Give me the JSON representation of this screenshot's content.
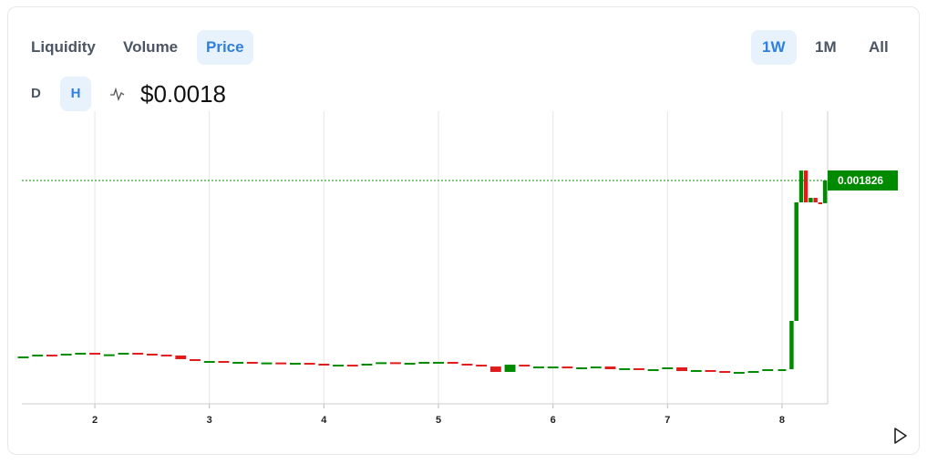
{
  "tabs": [
    "Liquidity",
    "Volume",
    "Price"
  ],
  "ranges": [
    "1W",
    "1M",
    "All"
  ],
  "intervals": [
    "D",
    "H"
  ],
  "price_display": "$0.0018",
  "chart_data": {
    "type": "candlestick",
    "x": [
      1.375,
      1.5,
      1.625,
      1.75,
      1.875,
      2.0,
      2.125,
      2.25,
      2.375,
      2.5,
      2.625,
      2.75,
      2.875,
      3.0,
      3.125,
      3.25,
      3.375,
      3.5,
      3.625,
      3.75,
      3.875,
      4.0,
      4.125,
      4.25,
      4.375,
      4.5,
      4.625,
      4.75,
      4.875,
      5.0,
      5.125,
      5.25,
      5.375,
      5.5,
      5.625,
      5.75,
      5.875,
      6.0,
      6.125,
      6.25,
      6.375,
      6.5,
      6.625,
      6.75,
      6.875,
      7.0,
      7.125,
      7.25,
      7.375,
      7.5,
      7.625,
      7.75,
      7.875,
      8.0,
      8.083,
      8.125,
      8.167,
      8.208,
      8.25,
      8.292,
      8.333,
      8.375
    ],
    "open": [
      0.00038,
      0.000387,
      0.000402,
      0.000395,
      0.00041,
      0.000417,
      0.000402,
      0.000405,
      0.000417,
      0.00041,
      0.000402,
      0.000395,
      0.000365,
      0.00035,
      0.00035,
      0.000343,
      0.000343,
      0.000335,
      0.000338,
      0.000328,
      0.000335,
      0.000328,
      0.00032,
      0.00032,
      0.000313,
      0.000328,
      0.00034,
      0.000328,
      0.000335,
      0.000343,
      0.000343,
      0.000328,
      0.00032,
      0.000305,
      0.000261,
      0.00032,
      0.000305,
      0.000305,
      0.000305,
      0.000291,
      0.000298,
      0.000305,
      0.000283,
      0.000291,
      0.000283,
      0.000283,
      0.000298,
      0.000268,
      0.000276,
      0.000268,
      0.000261,
      0.000261,
      0.000268,
      0.000283,
      0.000283,
      0.000678,
      0.001647,
      0.001907,
      0.001647,
      0.001684,
      0.001647,
      0.00164
    ],
    "close": [
      0.000387,
      0.000402,
      0.000395,
      0.00041,
      0.000417,
      0.000402,
      0.000405,
      0.000417,
      0.00041,
      0.000402,
      0.000395,
      0.000365,
      0.00035,
      0.00035,
      0.000343,
      0.000343,
      0.000335,
      0.000338,
      0.000328,
      0.000335,
      0.000328,
      0.00032,
      0.00032,
      0.000313,
      0.000328,
      0.00034,
      0.000328,
      0.000335,
      0.000343,
      0.000343,
      0.000328,
      0.00032,
      0.000305,
      0.000261,
      0.00032,
      0.000305,
      0.000305,
      0.000305,
      0.000291,
      0.000298,
      0.000305,
      0.000283,
      0.000291,
      0.000283,
      0.000283,
      0.000298,
      0.000268,
      0.000276,
      0.000268,
      0.000261,
      0.000261,
      0.000268,
      0.000283,
      0.000283,
      0.000678,
      0.001647,
      0.001907,
      0.001647,
      0.001684,
      0.001647,
      0.00164,
      0.001826
    ],
    "up_color": "#008a00",
    "down_color": "#e01b1b",
    "xlim": [
      1.363,
      8.398
    ],
    "xticks": [
      2,
      3,
      4,
      5,
      6,
      7,
      8
    ],
    "ylim": [
      0,
      0.002392
    ],
    "grid": true,
    "last_price_line": true
  }
}
